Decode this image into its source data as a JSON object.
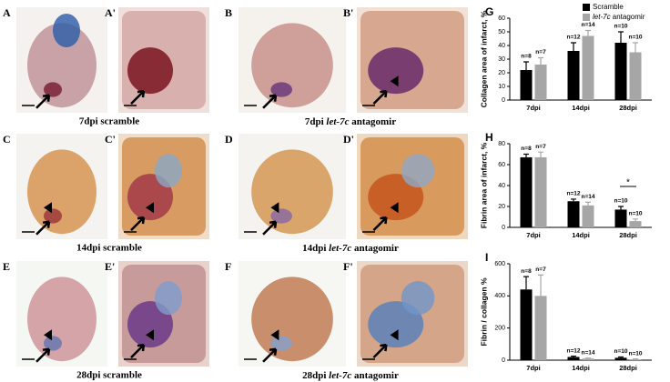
{
  "panels": [
    {
      "label": "A"
    },
    {
      "label": "A'"
    },
    {
      "label": "B"
    },
    {
      "label": "B'"
    },
    {
      "label": "C"
    },
    {
      "label": "C'"
    },
    {
      "label": "D"
    },
    {
      "label": "D'"
    },
    {
      "label": "E"
    },
    {
      "label": "E'"
    },
    {
      "label": "F"
    },
    {
      "label": "F'"
    }
  ],
  "captions": [
    {
      "text": "7dpi scramble"
    },
    {
      "prefix": "7dpi ",
      "italic": "let-7c",
      "suffix": " antagomir"
    },
    {
      "text": "14dpi scramble"
    },
    {
      "prefix": "14dpi ",
      "italic": "let-7c",
      "suffix": " antagomir"
    },
    {
      "text": "28dpi scramble"
    },
    {
      "prefix": "28dpi ",
      "italic": "let-7c",
      "suffix": " antagomir"
    }
  ],
  "chart_data": [
    {
      "type": "bar",
      "panel": "G",
      "ylabel": "Collagen area of infarct, %",
      "categories": [
        "7dpi",
        "14dpi",
        "28dpi"
      ],
      "ylim": [
        0,
        60
      ],
      "yticks": [
        0,
        10,
        20,
        30,
        40,
        50,
        60
      ],
      "series": [
        {
          "name": "Scramble",
          "color": "#000000",
          "values": [
            22,
            36,
            42
          ],
          "errors": [
            6,
            6,
            8
          ],
          "n_labels": [
            "n=8",
            "n=12",
            "n=10"
          ]
        },
        {
          "name": "let-7c antagomir",
          "color": "#a6a6a6",
          "values": [
            26,
            47,
            35
          ],
          "errors": [
            5,
            4,
            7
          ],
          "n_labels": [
            "n=7",
            "n=14",
            "n=10"
          ]
        }
      ]
    },
    {
      "type": "bar",
      "panel": "H",
      "ylabel": "Fibrin area of infarct, %",
      "categories": [
        "7dpi",
        "14dpi",
        "28dpi"
      ],
      "ylim": [
        0,
        80
      ],
      "yticks": [
        0,
        20,
        40,
        60,
        80
      ],
      "series": [
        {
          "name": "Scramble",
          "color": "#000000",
          "values": [
            67,
            25,
            17
          ],
          "errors": [
            3,
            2,
            3
          ],
          "n_labels": [
            "n=8",
            "n=12",
            "n=10"
          ]
        },
        {
          "name": "let-7c antagomir",
          "color": "#a6a6a6",
          "values": [
            67,
            21,
            6
          ],
          "errors": [
            5,
            3,
            2
          ],
          "n_labels": [
            "n=7",
            "n=14",
            "n=10"
          ]
        }
      ],
      "annotations": [
        {
          "text": "*",
          "category": 2
        }
      ]
    },
    {
      "type": "bar",
      "panel": "I",
      "ylabel": "Fibrin / collagen %",
      "categories": [
        "7dpi",
        "14dpi",
        "28dpi"
      ],
      "ylim": [
        0,
        600
      ],
      "yticks": [
        0,
        200,
        400,
        600
      ],
      "series": [
        {
          "name": "Scramble",
          "color": "#000000",
          "values": [
            440,
            20,
            15
          ],
          "errors": [
            80,
            5,
            5
          ],
          "n_labels": [
            "n=8",
            "n=12",
            "n=10"
          ]
        },
        {
          "name": "let-7c antagomir",
          "color": "#a6a6a6",
          "values": [
            400,
            10,
            5
          ],
          "errors": [
            130,
            3,
            3
          ],
          "n_labels": [
            "n=7",
            "n=14",
            "n=10"
          ]
        }
      ]
    }
  ]
}
